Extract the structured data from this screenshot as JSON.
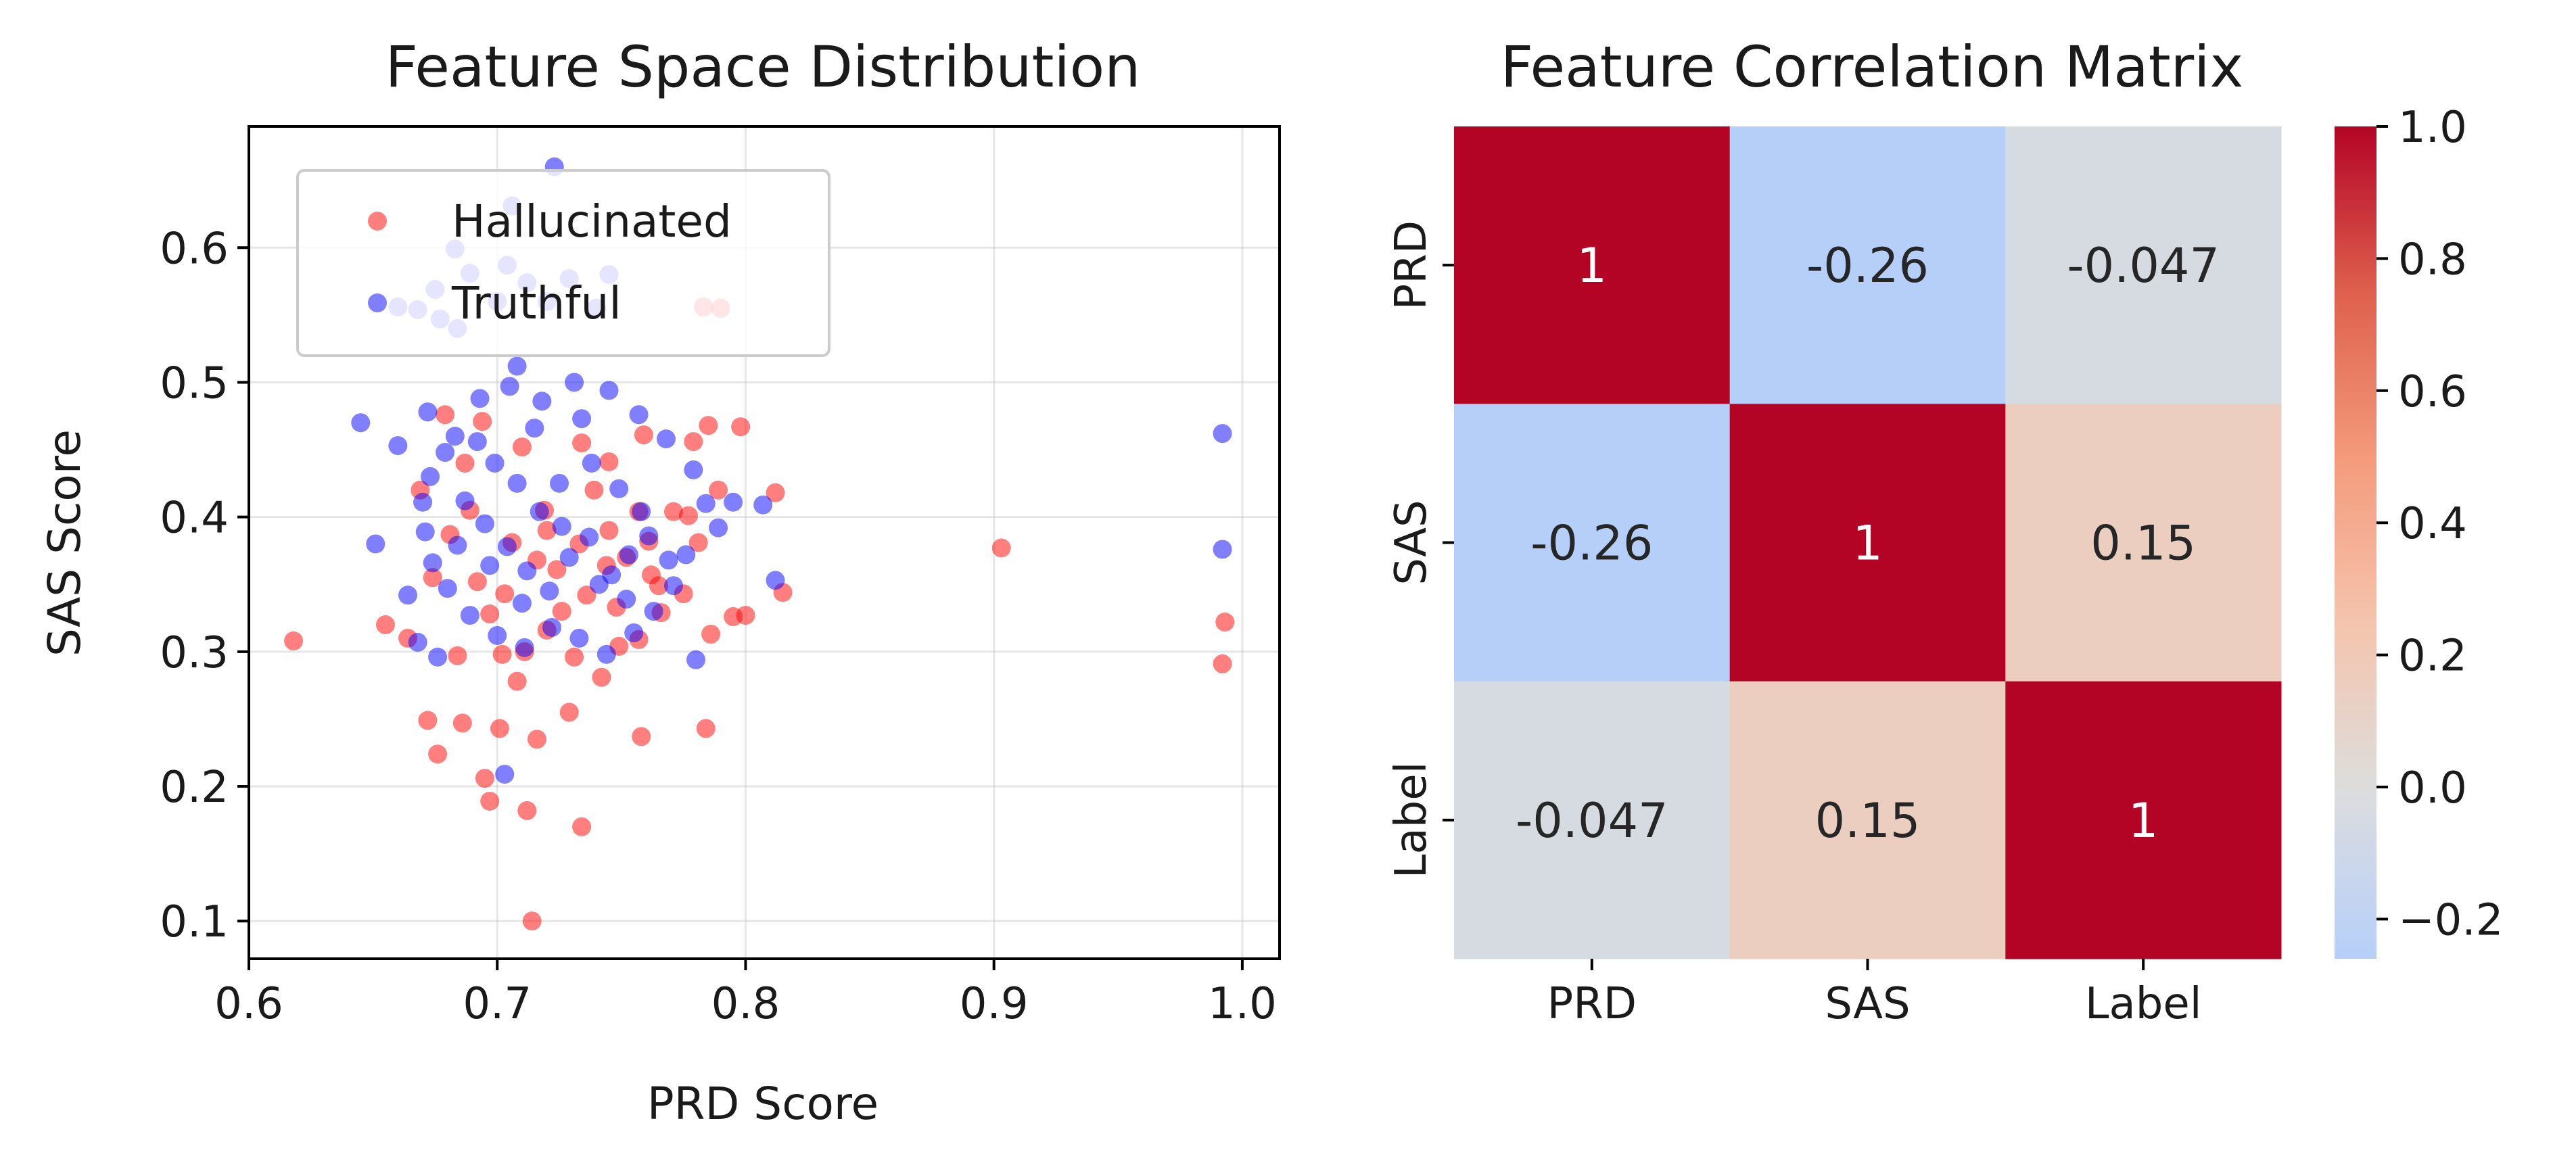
{
  "chart_data": [
    {
      "type": "scatter",
      "title": "Feature Space Distribution",
      "xlabel": "PRD Score",
      "ylabel": "SAS Score",
      "xlim": [
        0.6,
        1.015
      ],
      "ylim": [
        0.072,
        0.69
      ],
      "xticks": [
        "0.6",
        "0.7",
        "0.8",
        "0.9",
        "1.0"
      ],
      "yticks": [
        "0.1",
        "0.2",
        "0.3",
        "0.4",
        "0.5",
        "0.6"
      ],
      "grid": true,
      "legend_position": "upper-left",
      "series": [
        {
          "name": "Hallucinated",
          "color": "#ff0000",
          "alpha": 0.5,
          "points": [
            [
              0.618,
              0.308
            ],
            [
              0.672,
              0.249
            ],
            [
              0.686,
              0.247
            ],
            [
              0.676,
              0.224
            ],
            [
              0.695,
              0.206
            ],
            [
              0.701,
              0.243
            ],
            [
              0.712,
              0.182
            ],
            [
              0.716,
              0.235
            ],
            [
              0.697,
              0.189
            ],
            [
              0.714,
              0.1
            ],
            [
              0.729,
              0.255
            ],
            [
              0.734,
              0.17
            ],
            [
              0.758,
              0.237
            ],
            [
              0.784,
              0.243
            ],
            [
              0.903,
              0.377
            ],
            [
              0.815,
              0.344
            ],
            [
              0.812,
              0.418
            ],
            [
              0.785,
              0.468
            ],
            [
              0.798,
              0.467
            ],
            [
              0.779,
              0.456
            ],
            [
              0.783,
              0.556
            ],
            [
              0.79,
              0.555
            ],
            [
              0.993,
              0.322
            ],
            [
              0.992,
              0.291
            ],
            [
              0.708,
              0.278
            ],
            [
              0.655,
              0.32
            ],
            [
              0.664,
              0.31
            ],
            [
              0.692,
              0.352
            ],
            [
              0.702,
              0.298
            ],
            [
              0.742,
              0.281
            ],
            [
              0.726,
              0.33
            ],
            [
              0.757,
              0.309
            ],
            [
              0.766,
              0.329
            ],
            [
              0.681,
              0.387
            ],
            [
              0.669,
              0.42
            ],
            [
              0.687,
              0.44
            ],
            [
              0.719,
              0.405
            ],
            [
              0.734,
              0.455
            ],
            [
              0.745,
              0.39
            ],
            [
              0.752,
              0.37
            ],
            [
              0.762,
              0.357
            ],
            [
              0.771,
              0.404
            ],
            [
              0.781,
              0.381
            ],
            [
              0.789,
              0.42
            ],
            [
              0.795,
              0.326
            ],
            [
              0.8,
              0.327
            ],
            [
              0.786,
              0.313
            ],
            [
              0.775,
              0.343
            ],
            [
              0.716,
              0.368
            ],
            [
              0.703,
              0.343
            ],
            [
              0.724,
              0.361
            ],
            [
              0.736,
              0.342
            ],
            [
              0.748,
              0.333
            ],
            [
              0.761,
              0.382
            ],
            [
              0.689,
              0.405
            ],
            [
              0.697,
              0.328
            ],
            [
              0.731,
              0.296
            ],
            [
              0.749,
              0.304
            ],
            [
              0.739,
              0.42
            ],
            [
              0.757,
              0.404
            ],
            [
              0.71,
              0.452
            ],
            [
              0.679,
              0.476
            ],
            [
              0.694,
              0.471
            ],
            [
              0.72,
              0.39
            ],
            [
              0.744,
              0.364
            ],
            [
              0.765,
              0.349
            ],
            [
              0.674,
              0.355
            ],
            [
              0.706,
              0.381
            ],
            [
              0.733,
              0.38
            ],
            [
              0.777,
              0.401
            ],
            [
              0.72,
              0.316
            ],
            [
              0.711,
              0.3
            ],
            [
              0.684,
              0.297
            ],
            [
              0.745,
              0.441
            ],
            [
              0.759,
              0.461
            ]
          ]
        },
        {
          "name": "Truthful",
          "color": "#0000ff",
          "alpha": 0.5,
          "points": [
            [
              0.723,
              0.66
            ],
            [
              0.706,
              0.631
            ],
            [
              0.645,
              0.47
            ],
            [
              0.651,
              0.38
            ],
            [
              0.664,
              0.342
            ],
            [
              0.668,
              0.307
            ],
            [
              0.676,
              0.296
            ],
            [
              0.703,
              0.209
            ],
            [
              0.812,
              0.353
            ],
            [
              0.78,
              0.294
            ],
            [
              0.992,
              0.462
            ],
            [
              0.992,
              0.376
            ],
            [
              0.708,
              0.512
            ],
            [
              0.66,
              0.453
            ],
            [
              0.672,
              0.478
            ],
            [
              0.683,
              0.46
            ],
            [
              0.693,
              0.488
            ],
            [
              0.705,
              0.497
            ],
            [
              0.718,
              0.486
            ],
            [
              0.731,
              0.5
            ],
            [
              0.745,
              0.494
            ],
            [
              0.757,
              0.476
            ],
            [
              0.768,
              0.458
            ],
            [
              0.779,
              0.435
            ],
            [
              0.784,
              0.41
            ],
            [
              0.795,
              0.411
            ],
            [
              0.807,
              0.409
            ],
            [
              0.789,
              0.392
            ],
            [
              0.776,
              0.372
            ],
            [
              0.771,
              0.349
            ],
            [
              0.763,
              0.33
            ],
            [
              0.755,
              0.314
            ],
            [
              0.744,
              0.298
            ],
            [
              0.733,
              0.31
            ],
            [
              0.722,
              0.318
            ],
            [
              0.711,
              0.303
            ],
            [
              0.7,
              0.312
            ],
            [
              0.689,
              0.327
            ],
            [
              0.68,
              0.347
            ],
            [
              0.674,
              0.366
            ],
            [
              0.671,
              0.389
            ],
            [
              0.67,
              0.411
            ],
            [
              0.673,
              0.43
            ],
            [
              0.679,
              0.448
            ],
            [
              0.687,
              0.412
            ],
            [
              0.695,
              0.395
            ],
            [
              0.704,
              0.378
            ],
            [
              0.712,
              0.36
            ],
            [
              0.721,
              0.345
            ],
            [
              0.729,
              0.37
            ],
            [
              0.737,
              0.385
            ],
            [
              0.746,
              0.357
            ],
            [
              0.753,
              0.372
            ],
            [
              0.761,
              0.386
            ],
            [
              0.769,
              0.368
            ],
            [
              0.717,
              0.404
            ],
            [
              0.725,
              0.425
            ],
            [
              0.738,
              0.44
            ],
            [
              0.749,
              0.421
            ],
            [
              0.758,
              0.404
            ],
            [
              0.708,
              0.425
            ],
            [
              0.699,
              0.44
            ],
            [
              0.692,
              0.456
            ],
            [
              0.715,
              0.466
            ],
            [
              0.734,
              0.473
            ],
            [
              0.741,
              0.35
            ],
            [
              0.726,
              0.393
            ],
            [
              0.752,
              0.339
            ],
            [
              0.71,
              0.336
            ],
            [
              0.697,
              0.364
            ],
            [
              0.684,
              0.379
            ],
            [
              0.668,
              0.554
            ],
            [
              0.675,
              0.569
            ],
            [
              0.689,
              0.581
            ],
            [
              0.7,
              0.56
            ],
            [
              0.712,
              0.574
            ],
            [
              0.729,
              0.577
            ],
            [
              0.745,
              0.58
            ],
            [
              0.66,
              0.556
            ],
            [
              0.683,
              0.599
            ],
            [
              0.72,
              0.56
            ],
            [
              0.74,
              0.555
            ],
            [
              0.684,
              0.54
            ],
            [
              0.704,
              0.587
            ],
            [
              0.677,
              0.547
            ]
          ]
        }
      ]
    },
    {
      "type": "heatmap",
      "title": "Feature Correlation Matrix",
      "rows": [
        "PRD",
        "SAS",
        "Label"
      ],
      "columns": [
        "PRD",
        "SAS",
        "Label"
      ],
      "values": [
        [
          1,
          -0.26,
          -0.047
        ],
        [
          -0.26,
          1,
          0.15
        ],
        [
          -0.047,
          0.15,
          1
        ]
      ],
      "annotations": [
        [
          "1",
          "-0.26",
          "-0.047"
        ],
        [
          "-0.26",
          "1",
          "0.15"
        ],
        [
          "-0.047",
          "0.15",
          "1"
        ]
      ],
      "colormap": "coolwarm",
      "center": 0,
      "colorbar": {
        "range": [
          -0.26,
          1.0
        ],
        "ticks": [
          "−0.2",
          "0.0",
          "0.2",
          "0.4",
          "0.6",
          "0.8",
          "1.0"
        ]
      }
    }
  ]
}
